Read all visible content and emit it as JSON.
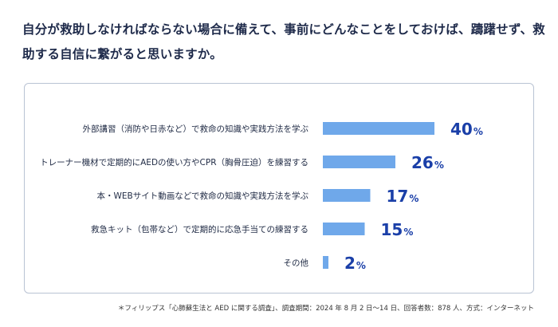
{
  "question": "自分が救助しなければならない場合に備えて、事前にどんなことをしておけば、躊躇せず、救助する自信に繋がると思いますか。",
  "footnote": "＊フィリップス「心肺蘇生法と AED に関する調査」、調査期間：2024 年 8 月 2 日～14 日、回答者数：878 人、方式：インターネット",
  "colors": {
    "bar": "#6fa8ea",
    "value": "#1a3fa8"
  },
  "chart_data": {
    "type": "bar",
    "orientation": "horizontal",
    "categories": [
      "外部講習（消防や日赤など）で救命の知識や実践方法を学ぶ",
      "トレーナー機材で定期的にAEDの使い方やCPR（胸骨圧迫）を練習する",
      "本・WEBサイト動画などで救命の知識や実践方法を学ぶ",
      "救急キット（包帯など）で定期的に応急手当ての練習する",
      "その他"
    ],
    "values": [
      40,
      26,
      17,
      15,
      2
    ],
    "unit": "%",
    "xlim": [
      0,
      100
    ]
  }
}
